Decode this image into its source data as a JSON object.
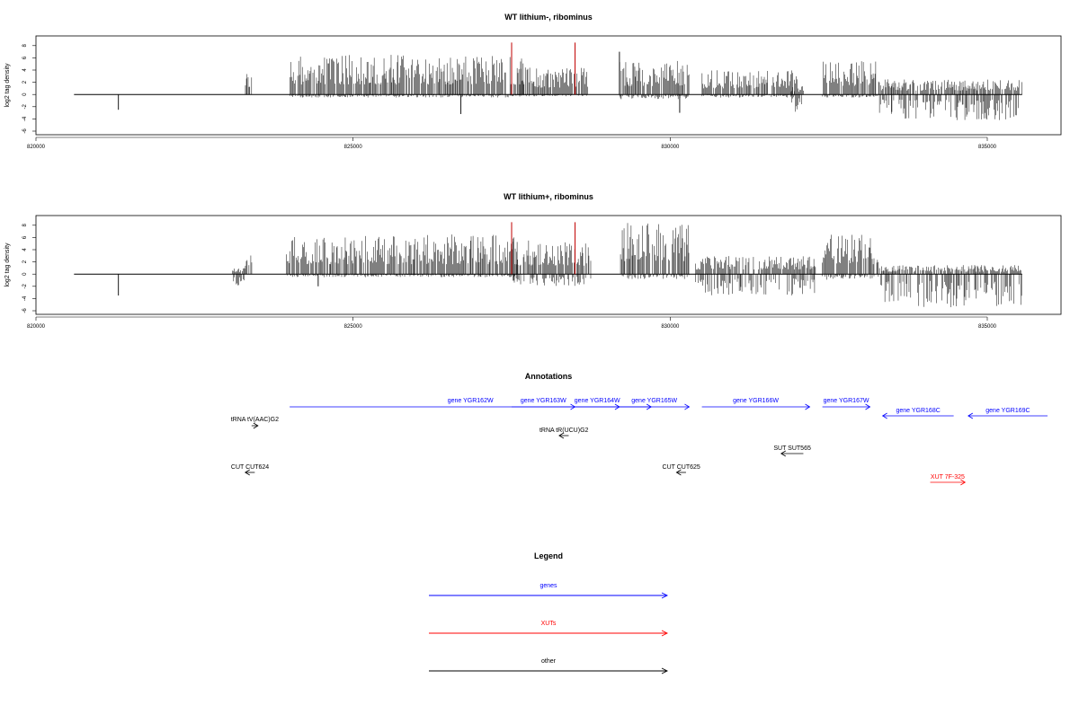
{
  "chart_data": [
    {
      "type": "bar",
      "title": "WT lithium-, ribominus",
      "ylabel": "log2 tag density",
      "xlim": [
        820000,
        836500
      ],
      "ylim": [
        -6,
        9
      ],
      "x_ticks": [
        "820000",
        "825000",
        "830000",
        "835000"
      ],
      "y_ticks": [
        "8",
        "6",
        "4",
        "2",
        "0",
        "-2",
        "-4",
        "-6"
      ],
      "baseline_range": [
        820600,
        835550
      ],
      "signal_segments": [
        {
          "from": 823300,
          "to": 823400,
          "positive_max": 3.8,
          "negative_max": 0
        },
        {
          "from": 824000,
          "to": 827700,
          "positive_max": 6.5,
          "negative_max": 0.5
        },
        {
          "from": 827600,
          "to": 828700,
          "positive_max": 4.5,
          "negative_max": 0.3
        },
        {
          "from": 829200,
          "to": 830300,
          "positive_max": 5.5,
          "negative_max": 0.8
        },
        {
          "from": 830500,
          "to": 832000,
          "positive_max": 4.0,
          "negative_max": 0.5
        },
        {
          "from": 831900,
          "to": 832100,
          "positive_max": 1.5,
          "negative_max": 3.0
        },
        {
          "from": 832400,
          "to": 833300,
          "positive_max": 5.5,
          "negative_max": 0.5
        },
        {
          "from": 833300,
          "to": 835550,
          "positive_max": 2.5,
          "negative_max": 4.2
        }
      ],
      "spikes": [
        {
          "x": 821300,
          "y": -2.5
        },
        {
          "x": 826700,
          "y": -3.2
        },
        {
          "x": 830150,
          "y": -3.0
        },
        {
          "x": 829200,
          "y": 7.0
        }
      ],
      "markers": [
        {
          "x": 827500,
          "y": 8.5,
          "color": "#c00000"
        },
        {
          "x": 828500,
          "y": 8.5,
          "color": "#c00000"
        }
      ]
    },
    {
      "type": "bar",
      "title": "WT lithium+, ribominus",
      "ylabel": "log2 tag density",
      "xlim": [
        820000,
        836500
      ],
      "ylim": [
        -6,
        9
      ],
      "x_ticks": [
        "820000",
        "825000",
        "830000",
        "835000"
      ],
      "y_ticks": [
        "8",
        "6",
        "4",
        "2",
        "0",
        "-2",
        "-4",
        "-6"
      ],
      "baseline_range": [
        820600,
        835550
      ],
      "signal_segments": [
        {
          "from": 823100,
          "to": 823300,
          "positive_max": 1.0,
          "negative_max": 2.5
        },
        {
          "from": 823300,
          "to": 823450,
          "positive_max": 4.0,
          "negative_max": 0
        },
        {
          "from": 823950,
          "to": 827600,
          "positive_max": 6.5,
          "negative_max": 0.5
        },
        {
          "from": 827500,
          "to": 828750,
          "positive_max": 5.5,
          "negative_max": 2.0
        },
        {
          "from": 829200,
          "to": 830300,
          "positive_max": 8.5,
          "negative_max": 0.8
        },
        {
          "from": 830400,
          "to": 832300,
          "positive_max": 3.0,
          "negative_max": 3.5
        },
        {
          "from": 832400,
          "to": 833300,
          "positive_max": 6.5,
          "negative_max": 1.0
        },
        {
          "from": 833300,
          "to": 835550,
          "positive_max": 1.5,
          "negative_max": 5.5
        }
      ],
      "spikes": [
        {
          "x": 821300,
          "y": -3.5
        },
        {
          "x": 824450,
          "y": -2.0
        }
      ],
      "markers": [
        {
          "x": 827500,
          "y": 8.5,
          "color": "#c00000"
        },
        {
          "x": 828500,
          "y": 8.5,
          "color": "#c00000"
        }
      ]
    }
  ],
  "annotations": {
    "title": "Annotations",
    "items": [
      {
        "label": "gene YGR162W",
        "color": "#0000ff",
        "from": 824000,
        "to": 829700,
        "row": 0,
        "dir": "right"
      },
      {
        "label": "gene YGR163W",
        "color": "#0000ff",
        "from": 827500,
        "to": 828500,
        "row": 0,
        "dir": "right"
      },
      {
        "label": "gene YGR164W",
        "color": "#0000ff",
        "from": 828500,
        "to": 829200,
        "row": 0,
        "dir": "right"
      },
      {
        "label": "gene YGR165W",
        "color": "#0000ff",
        "from": 829200,
        "to": 830300,
        "row": 0,
        "dir": "right"
      },
      {
        "label": "gene YGR166W",
        "color": "#0000ff",
        "from": 830500,
        "to": 832200,
        "row": 0,
        "dir": "right"
      },
      {
        "label": "gene YGR167W",
        "color": "#0000ff",
        "from": 832400,
        "to": 833150,
        "row": 0,
        "dir": "right"
      },
      {
        "label": "gene YGR168C",
        "color": "#0000ff",
        "from": 833350,
        "to": 834470,
        "row": 1,
        "dir": "left"
      },
      {
        "label": "gene YGR169C",
        "color": "#0000ff",
        "from": 834700,
        "to": 835950,
        "row": 1,
        "dir": "left"
      },
      {
        "label": "tRNA tV(AAC)G2",
        "color": "#000000",
        "from": 823400,
        "to": 823500,
        "row": 2,
        "dir": "right"
      },
      {
        "label": "tRNA tR(UCU)G2",
        "color": "#000000",
        "from": 828250,
        "to": 828400,
        "row": 3,
        "dir": "left"
      },
      {
        "label": "SUT SUT565",
        "color": "#000000",
        "from": 831750,
        "to": 832100,
        "row": 4,
        "dir": "left"
      },
      {
        "label": "CUT CUT624",
        "color": "#000000",
        "from": 823300,
        "to": 823450,
        "row": 5,
        "dir": "left"
      },
      {
        "label": "CUT CUT625",
        "color": "#000000",
        "from": 830100,
        "to": 830250,
        "row": 5,
        "dir": "left"
      },
      {
        "label": "XUT 7F-325",
        "color": "#ff0000",
        "from": 834100,
        "to": 834650,
        "row": 6,
        "dir": "right"
      }
    ]
  },
  "legend": {
    "title": "Legend",
    "items": [
      {
        "label": "genes",
        "color": "#0000ff"
      },
      {
        "label": "XUTs",
        "color": "#ff0000"
      },
      {
        "label": "other",
        "color": "#000000"
      }
    ]
  }
}
